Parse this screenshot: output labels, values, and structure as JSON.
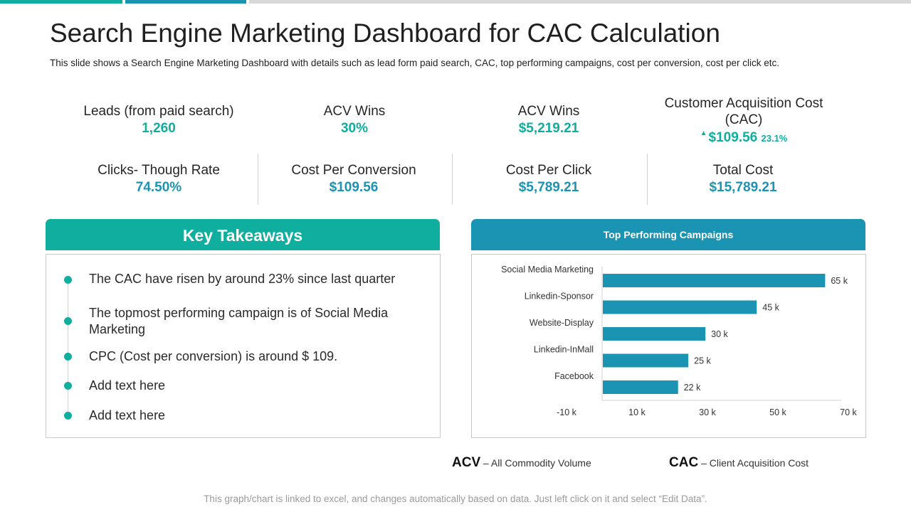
{
  "title": "Search Engine Marketing Dashboard for CAC Calculation",
  "subtitle": "This slide shows a Search Engine Marketing  Dashboard with details such as lead form paid search, CAC, top performing campaigns, cost per conversion, cost per click etc.",
  "kpis": {
    "leads": {
      "label": "Leads (from paid search)",
      "value": "1,260"
    },
    "acv_wins_pct": {
      "label": "ACV Wins",
      "value": "30%"
    },
    "acv_wins_amt": {
      "label": "ACV Wins",
      "value": "$5,219.21"
    },
    "cac": {
      "label_line1": "Customer Acquisition Cost",
      "label_line2": "(CAC)",
      "value": "$109.56",
      "change": "23.1%"
    },
    "ctr": {
      "label": "Clicks- Though Rate",
      "value": "74.50%"
    },
    "cpc_conv": {
      "label": "Cost Per Conversion",
      "value": "$109.56"
    },
    "cost_per_click": {
      "label": "Cost Per Click",
      "value": "$5,789.21"
    },
    "total_cost": {
      "label": "Total Cost",
      "value": "$15,789.21"
    }
  },
  "key_takeaways": {
    "heading": "Key Takeaways",
    "items": [
      "The CAC have risen by around 23% since last quarter",
      "The topmost performing campaign is of Social Media Marketing",
      "CPC (Cost per conversion) is around $ 109.",
      "Add text here",
      "Add text here"
    ]
  },
  "campaigns_heading": "Top Performing Campaigns",
  "chart_data": {
    "type": "bar",
    "orientation": "horizontal",
    "categories": [
      "Social Media Marketing",
      "Linkedin-Sponsor",
      "Website-Display",
      "Linkedin-InMall",
      "Facebook"
    ],
    "values": [
      65,
      45,
      30,
      25,
      22
    ],
    "data_labels": [
      "65 k",
      "45 k",
      "30 k",
      "25 k",
      "22 k"
    ],
    "xlim": [
      -10,
      70
    ],
    "xticks": [
      -10,
      10,
      30,
      50,
      70
    ],
    "xtick_labels": [
      "-10 k",
      "10 k",
      "30 k",
      "50 k",
      "70 k"
    ],
    "bar_color": "#1a94b2"
  },
  "abbreviations": {
    "acv": {
      "abbr": "ACV",
      "desc": "– All Commodity Volume"
    },
    "cac": {
      "abbr": "CAC",
      "desc": "– Client Acquisition Cost"
    }
  },
  "footer": "This graph/chart is linked to excel, and changes automatically based on data. Just left click on it and select “Edit Data”.",
  "colors": {
    "teal": "#0fae9e",
    "blue": "#1a94b2"
  }
}
